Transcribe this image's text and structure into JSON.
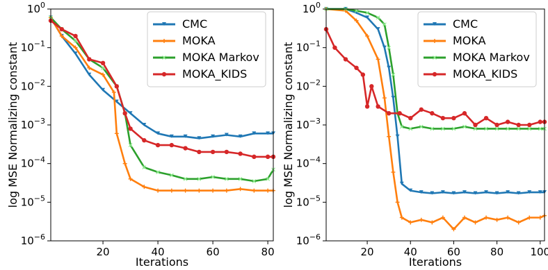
{
  "colors": {
    "CMC": "#1f77b4",
    "MOKA": "#ff7f0e",
    "MOKA Markov": "#2ca02c",
    "MOKA_KIDS": "#d62728"
  },
  "chart_data": [
    {
      "type": "line",
      "title": "",
      "xlabel": "Iterations",
      "ylabel": "log MSE Normalizing constant",
      "yscale": "log",
      "xlim": [
        1,
        82
      ],
      "ylim": [
        1e-06,
        1
      ],
      "x_ticks": [
        20,
        40,
        60,
        80
      ],
      "y_ticks": [
        "10^-6",
        "10^-5",
        "10^-4",
        "10^-3",
        "10^-2",
        "10^-1",
        "10^0"
      ],
      "legend_position": "top-right",
      "grid": false,
      "series": [
        {
          "name": "CMC",
          "x": [
            1,
            5,
            10,
            15,
            20,
            25,
            30,
            35,
            40,
            45,
            50,
            55,
            60,
            65,
            70,
            75,
            80,
            82
          ],
          "y": [
            0.6,
            0.2,
            0.07,
            0.02,
            0.008,
            0.004,
            0.002,
            0.001,
            0.0006,
            0.0005,
            0.0005,
            0.00045,
            0.0005,
            0.00055,
            0.0005,
            0.0006,
            0.0006,
            0.0006
          ]
        },
        {
          "name": "MOKA",
          "x": [
            1,
            5,
            10,
            15,
            20,
            24,
            25,
            28,
            30,
            35,
            40,
            45,
            50,
            55,
            60,
            65,
            70,
            75,
            80,
            82
          ],
          "y": [
            0.6,
            0.2,
            0.1,
            0.03,
            0.02,
            0.007,
            0.0006,
            0.0001,
            4e-05,
            2.5e-05,
            2e-05,
            2e-05,
            2e-05,
            2e-05,
            2e-05,
            2e-05,
            2.2e-05,
            2e-05,
            2e-05,
            2e-05
          ]
        },
        {
          "name": "MOKA Markov",
          "x": [
            1,
            5,
            10,
            15,
            20,
            25,
            28,
            30,
            35,
            40,
            45,
            50,
            55,
            60,
            65,
            70,
            75,
            80,
            82
          ],
          "y": [
            0.6,
            0.3,
            0.15,
            0.05,
            0.03,
            0.01,
            0.002,
            0.0003,
            8e-05,
            6e-05,
            5e-05,
            4e-05,
            4e-05,
            4.5e-05,
            4e-05,
            4e-05,
            3.5e-05,
            4e-05,
            7e-05
          ]
        },
        {
          "name": "MOKA_KIDS",
          "x": [
            1,
            5,
            10,
            15,
            20,
            25,
            28,
            30,
            35,
            40,
            45,
            50,
            55,
            60,
            65,
            70,
            75,
            80,
            82
          ],
          "y": [
            0.5,
            0.3,
            0.2,
            0.05,
            0.04,
            0.01,
            0.002,
            0.0008,
            0.0004,
            0.0003,
            0.0003,
            0.00025,
            0.0002,
            0.0002,
            0.0002,
            0.00018,
            0.00015,
            0.00015,
            0.00015
          ]
        }
      ]
    },
    {
      "type": "line",
      "title": "",
      "xlabel": "Iterations",
      "ylabel": "log MSE Normalizing constant",
      "yscale": "log",
      "xlim": [
        1,
        102
      ],
      "ylim": [
        1e-06,
        1
      ],
      "x_ticks": [
        20,
        40,
        60,
        80,
        100
      ],
      "y_ticks": [
        "10^-6",
        "10^-5",
        "10^-4",
        "10^-3",
        "10^-2",
        "10^-1",
        "10^0"
      ],
      "legend_position": "top-right",
      "grid": false,
      "series": [
        {
          "name": "CMC",
          "x": [
            1,
            10,
            15,
            20,
            25,
            28,
            30,
            32,
            34,
            36,
            40,
            45,
            50,
            55,
            60,
            65,
            70,
            75,
            80,
            85,
            90,
            95,
            100,
            102
          ],
          "y": [
            1.0,
            1.0,
            0.8,
            0.6,
            0.3,
            0.1,
            0.03,
            0.005,
            0.0005,
            3e-05,
            2e-05,
            1.8e-05,
            1.7e-05,
            1.8e-05,
            1.7e-05,
            1.8e-05,
            1.7e-05,
            1.8e-05,
            1.7e-05,
            1.8e-05,
            1.7e-05,
            1.8e-05,
            1.8e-05,
            1.8e-05
          ]
        },
        {
          "name": "MOKA",
          "x": [
            1,
            10,
            15,
            20,
            25,
            28,
            30,
            32,
            34,
            36,
            40,
            45,
            50,
            55,
            60,
            65,
            70,
            75,
            80,
            85,
            90,
            95,
            100,
            102
          ],
          "y": [
            1.0,
            0.9,
            0.5,
            0.2,
            0.05,
            0.005,
            0.0005,
            6e-05,
            1e-05,
            4e-06,
            3e-06,
            3.5e-06,
            3e-06,
            4e-06,
            2e-06,
            4e-06,
            3e-06,
            4e-06,
            3.5e-06,
            4e-06,
            3e-06,
            4e-06,
            4e-06,
            4.5e-06
          ]
        },
        {
          "name": "MOKA Markov",
          "x": [
            1,
            10,
            15,
            20,
            25,
            28,
            30,
            32,
            34,
            36,
            40,
            45,
            50,
            55,
            60,
            65,
            70,
            75,
            80,
            85,
            90,
            95,
            100,
            102
          ],
          "y": [
            1.0,
            1.0,
            0.9,
            0.8,
            0.6,
            0.4,
            0.1,
            0.02,
            0.002,
            0.0009,
            0.0008,
            0.0009,
            0.0008,
            0.0008,
            0.0008,
            0.0009,
            0.0008,
            0.0008,
            0.0008,
            0.0008,
            0.0008,
            0.0008,
            0.0008,
            0.0008
          ]
        },
        {
          "name": "MOKA_KIDS",
          "x": [
            1,
            5,
            10,
            15,
            18,
            20,
            22,
            25,
            30,
            35,
            40,
            45,
            50,
            55,
            60,
            65,
            70,
            75,
            80,
            85,
            90,
            95,
            100,
            102
          ],
          "y": [
            0.3,
            0.1,
            0.05,
            0.03,
            0.02,
            0.003,
            0.01,
            0.003,
            0.002,
            0.002,
            0.0015,
            0.0025,
            0.002,
            0.0015,
            0.0015,
            0.002,
            0.001,
            0.0015,
            0.001,
            0.0012,
            0.001,
            0.001,
            0.0012,
            0.0012
          ]
        }
      ]
    }
  ]
}
